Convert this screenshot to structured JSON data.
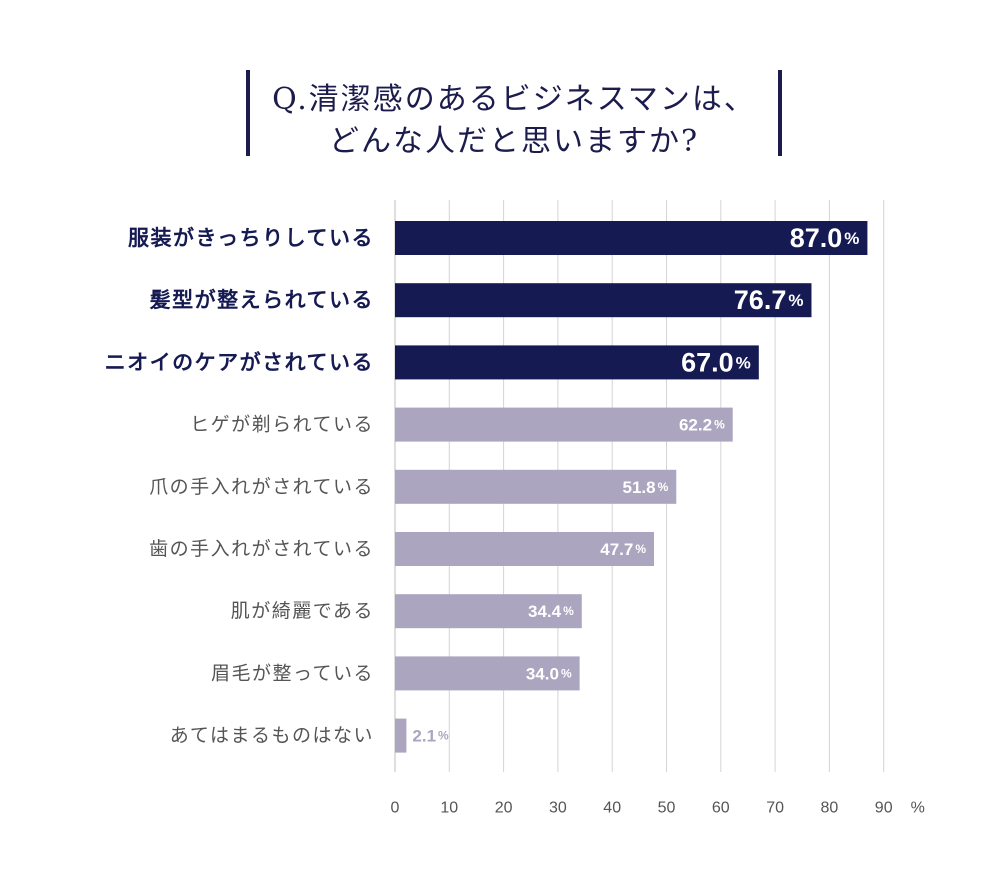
{
  "title": {
    "line1": "Q.清潔感のあるビジネスマンは、",
    "line2": "どんな人だと思いますか?"
  },
  "chart_data": {
    "type": "bar",
    "orientation": "horizontal",
    "categories": [
      "服装がきっちりしている",
      "髪型が整えられている",
      "ニオイのケアがされている",
      "ヒゲが剃られている",
      "爪の手入れがされている",
      "歯の手入れがされている",
      "肌が綺麗である",
      "眉毛が整っている",
      "あてはまるものはない"
    ],
    "values": [
      87.0,
      76.7,
      67.0,
      62.2,
      51.8,
      47.7,
      34.4,
      34.0,
      2.1
    ],
    "value_labels": [
      "87.0",
      "76.7",
      "67.0",
      "62.2",
      "51.8",
      "47.7",
      "34.4",
      "34.0",
      "2.1"
    ],
    "unit": "%",
    "highlighted_count": 3,
    "xlim": [
      0,
      90
    ],
    "xticks": [
      0,
      10,
      20,
      30,
      40,
      50,
      60,
      70,
      80,
      90
    ],
    "x_unit_label": "%",
    "grid": true,
    "colors": {
      "highlight": "#151a52",
      "normal": "#aca5bf",
      "label_highlight": "#151a52",
      "label_normal": "#555555",
      "grid": "#d4d4d4",
      "axis_text": "#555555",
      "small_value_text": "#aca5bf"
    }
  }
}
